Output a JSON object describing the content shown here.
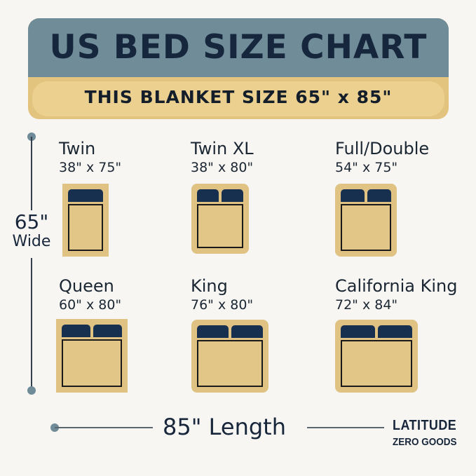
{
  "header": {
    "title": "US BED SIZE CHART",
    "subtitle": "THIS BLANKET SIZE 65\" x 85\""
  },
  "colors": {
    "header_blue": "#6f8c98",
    "header_gold": "#e3c47f",
    "bed": "#e0c383",
    "pillow": "#173050",
    "text": "#17263a"
  },
  "beds": [
    {
      "name": "Twin",
      "size": "38\" x 75\"",
      "pillows": 1
    },
    {
      "name": "Twin XL",
      "size": "38\" x 80\"",
      "pillows": 2
    },
    {
      "name": "Full/Double",
      "size": "54\" x 75\"",
      "pillows": 2
    },
    {
      "name": "Queen",
      "size": "60\" x 80\"",
      "pillows": 2
    },
    {
      "name": "King",
      "size": "76\" x 80\"",
      "pillows": 2
    },
    {
      "name": "California King",
      "size": "72\" x 84\"",
      "pillows": 2
    }
  ],
  "width_label": {
    "value": "65\"",
    "text": "Wide"
  },
  "length_label": "85\" Length",
  "brand": {
    "line1": "LATITUDE",
    "line2": "ZERO GOODS"
  }
}
